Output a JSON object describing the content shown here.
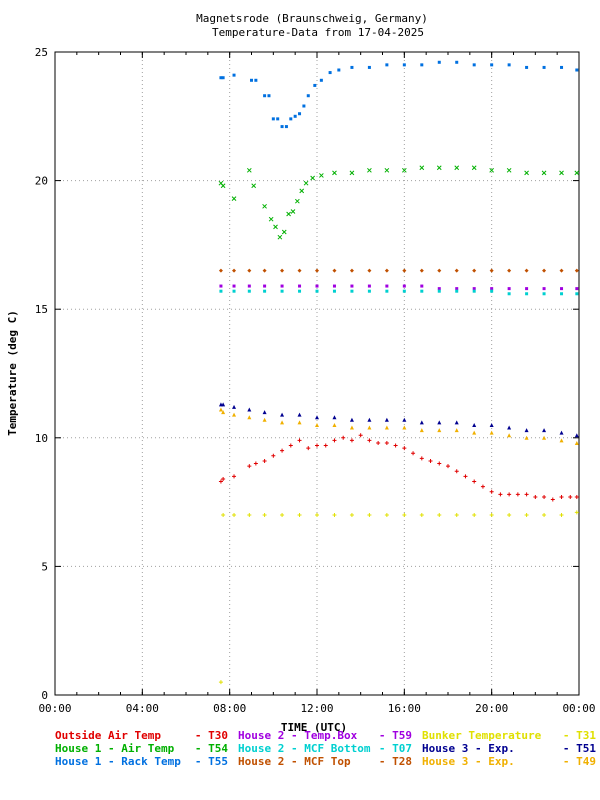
{
  "chart_data": {
    "type": "scatter",
    "title": "Magnetsrode (Braunschweig, Germany)",
    "subtitle": "Temperature-Data from 17-04-2025",
    "xlabel": "TIME (UTC)",
    "ylabel": "Temperature (deg C)",
    "xlim": [
      0,
      24
    ],
    "ylim": [
      0,
      25
    ],
    "x_ticks": [
      "00:00",
      "04:00",
      "08:00",
      "12:00",
      "16:00",
      "20:00",
      "00:00"
    ],
    "y_ticks": [
      "0",
      "5",
      "10",
      "15",
      "20",
      "25"
    ],
    "grid": true,
    "legend_position": "bottom",
    "series": [
      {
        "name": "Outside Air Temp",
        "code": "T30",
        "color": "#e00000",
        "marker": "+",
        "points": [
          [
            7.6,
            8.3
          ],
          [
            7.7,
            8.4
          ],
          [
            8.2,
            8.5
          ],
          [
            8.9,
            8.9
          ],
          [
            9.2,
            9.0
          ],
          [
            9.6,
            9.1
          ],
          [
            10.0,
            9.3
          ],
          [
            10.4,
            9.5
          ],
          [
            10.8,
            9.7
          ],
          [
            11.2,
            9.9
          ],
          [
            11.6,
            9.6
          ],
          [
            12.0,
            9.7
          ],
          [
            12.4,
            9.7
          ],
          [
            12.8,
            9.9
          ],
          [
            13.2,
            10.0
          ],
          [
            13.6,
            9.9
          ],
          [
            14.0,
            10.1
          ],
          [
            14.4,
            9.9
          ],
          [
            14.8,
            9.8
          ],
          [
            15.2,
            9.8
          ],
          [
            15.6,
            9.7
          ],
          [
            16.0,
            9.6
          ],
          [
            16.4,
            9.4
          ],
          [
            16.8,
            9.2
          ],
          [
            17.2,
            9.1
          ],
          [
            17.6,
            9.0
          ],
          [
            18.0,
            8.9
          ],
          [
            18.4,
            8.7
          ],
          [
            18.8,
            8.5
          ],
          [
            19.2,
            8.3
          ],
          [
            19.6,
            8.1
          ],
          [
            20.0,
            7.9
          ],
          [
            20.4,
            7.8
          ],
          [
            20.8,
            7.8
          ],
          [
            21.2,
            7.8
          ],
          [
            21.6,
            7.8
          ],
          [
            22.0,
            7.7
          ],
          [
            22.4,
            7.7
          ],
          [
            22.8,
            7.6
          ],
          [
            23.2,
            7.7
          ],
          [
            23.6,
            7.7
          ],
          [
            23.9,
            7.7
          ]
        ]
      },
      {
        "name": "House 1 - Air  Temp",
        "code": "T54",
        "color": "#00b000",
        "marker": "x",
        "points": [
          [
            7.6,
            19.9
          ],
          [
            7.7,
            19.8
          ],
          [
            8.2,
            19.3
          ],
          [
            8.9,
            20.4
          ],
          [
            9.1,
            19.8
          ],
          [
            9.6,
            19.0
          ],
          [
            9.9,
            18.5
          ],
          [
            10.1,
            18.2
          ],
          [
            10.3,
            17.8
          ],
          [
            10.5,
            18.0
          ],
          [
            10.7,
            18.7
          ],
          [
            10.9,
            18.8
          ],
          [
            11.1,
            19.2
          ],
          [
            11.3,
            19.6
          ],
          [
            11.5,
            19.9
          ],
          [
            11.8,
            20.1
          ],
          [
            12.2,
            20.2
          ],
          [
            12.8,
            20.3
          ],
          [
            13.6,
            20.3
          ],
          [
            14.4,
            20.4
          ],
          [
            15.2,
            20.4
          ],
          [
            16.0,
            20.4
          ],
          [
            16.8,
            20.5
          ],
          [
            17.6,
            20.5
          ],
          [
            18.4,
            20.5
          ],
          [
            19.2,
            20.5
          ],
          [
            20.0,
            20.4
          ],
          [
            20.8,
            20.4
          ],
          [
            21.6,
            20.3
          ],
          [
            22.4,
            20.3
          ],
          [
            23.2,
            20.3
          ],
          [
            23.9,
            20.3
          ]
        ]
      },
      {
        "name": "House 1 - Rack Temp",
        "code": "T55",
        "color": "#0070e0",
        "marker": "square",
        "points": [
          [
            7.6,
            24.0
          ],
          [
            7.7,
            24.0
          ],
          [
            8.2,
            24.1
          ],
          [
            9.0,
            23.9
          ],
          [
            9.2,
            23.9
          ],
          [
            9.6,
            23.3
          ],
          [
            9.8,
            23.3
          ],
          [
            10.0,
            22.4
          ],
          [
            10.2,
            22.4
          ],
          [
            10.4,
            22.1
          ],
          [
            10.6,
            22.1
          ],
          [
            10.8,
            22.4
          ],
          [
            11.0,
            22.5
          ],
          [
            11.2,
            22.6
          ],
          [
            11.4,
            22.9
          ],
          [
            11.6,
            23.3
          ],
          [
            11.9,
            23.7
          ],
          [
            12.2,
            23.9
          ],
          [
            12.6,
            24.2
          ],
          [
            13.0,
            24.3
          ],
          [
            13.6,
            24.4
          ],
          [
            14.4,
            24.4
          ],
          [
            15.2,
            24.5
          ],
          [
            16.0,
            24.5
          ],
          [
            16.8,
            24.5
          ],
          [
            17.6,
            24.6
          ],
          [
            18.4,
            24.6
          ],
          [
            19.2,
            24.5
          ],
          [
            20.0,
            24.5
          ],
          [
            20.8,
            24.5
          ],
          [
            21.6,
            24.4
          ],
          [
            22.4,
            24.4
          ],
          [
            23.2,
            24.4
          ],
          [
            23.9,
            24.3
          ]
        ]
      },
      {
        "name": "House 2 - Temp.Box",
        "code": "T59",
        "color": "#a000e0",
        "marker": "square",
        "points": [
          [
            7.6,
            15.9
          ],
          [
            8.2,
            15.9
          ],
          [
            8.9,
            15.9
          ],
          [
            9.6,
            15.9
          ],
          [
            10.4,
            15.9
          ],
          [
            11.2,
            15.9
          ],
          [
            12.0,
            15.9
          ],
          [
            12.8,
            15.9
          ],
          [
            13.6,
            15.9
          ],
          [
            14.4,
            15.9
          ],
          [
            15.2,
            15.9
          ],
          [
            16.0,
            15.9
          ],
          [
            16.8,
            15.9
          ],
          [
            17.6,
            15.8
          ],
          [
            18.4,
            15.8
          ],
          [
            19.2,
            15.8
          ],
          [
            20.0,
            15.8
          ],
          [
            20.8,
            15.8
          ],
          [
            21.6,
            15.8
          ],
          [
            22.4,
            15.8
          ],
          [
            23.2,
            15.8
          ],
          [
            23.9,
            15.8
          ]
        ]
      },
      {
        "name": "House 2 - MCF Bottom",
        "code": "T07",
        "color": "#00d0d0",
        "marker": "square",
        "points": [
          [
            7.6,
            15.7
          ],
          [
            8.2,
            15.7
          ],
          [
            8.9,
            15.7
          ],
          [
            9.6,
            15.7
          ],
          [
            10.4,
            15.7
          ],
          [
            11.2,
            15.7
          ],
          [
            12.0,
            15.7
          ],
          [
            12.8,
            15.7
          ],
          [
            13.6,
            15.7
          ],
          [
            14.4,
            15.7
          ],
          [
            15.2,
            15.7
          ],
          [
            16.0,
            15.7
          ],
          [
            16.8,
            15.7
          ],
          [
            17.6,
            15.7
          ],
          [
            18.4,
            15.7
          ],
          [
            19.2,
            15.7
          ],
          [
            20.0,
            15.7
          ],
          [
            20.8,
            15.6
          ],
          [
            21.6,
            15.6
          ],
          [
            22.4,
            15.6
          ],
          [
            23.2,
            15.6
          ],
          [
            23.9,
            15.6
          ]
        ]
      },
      {
        "name": "House 2 - MCF Top",
        "code": "T28",
        "color": "#c05000",
        "marker": "diamond",
        "points": [
          [
            7.6,
            16.5
          ],
          [
            8.2,
            16.5
          ],
          [
            8.9,
            16.5
          ],
          [
            9.6,
            16.5
          ],
          [
            10.4,
            16.5
          ],
          [
            11.2,
            16.5
          ],
          [
            12.0,
            16.5
          ],
          [
            12.8,
            16.5
          ],
          [
            13.6,
            16.5
          ],
          [
            14.4,
            16.5
          ],
          [
            15.2,
            16.5
          ],
          [
            16.0,
            16.5
          ],
          [
            16.8,
            16.5
          ],
          [
            17.6,
            16.5
          ],
          [
            18.4,
            16.5
          ],
          [
            19.2,
            16.5
          ],
          [
            20.0,
            16.5
          ],
          [
            20.8,
            16.5
          ],
          [
            21.6,
            16.5
          ],
          [
            22.4,
            16.5
          ],
          [
            23.2,
            16.5
          ],
          [
            23.9,
            16.5
          ]
        ]
      },
      {
        "name": "Bunker Temperature",
        "code": "T31",
        "color": "#e0e000",
        "marker": "+",
        "points": [
          [
            7.6,
            0.5
          ],
          [
            7.7,
            7.0
          ],
          [
            8.2,
            7.0
          ],
          [
            8.9,
            7.0
          ],
          [
            9.6,
            7.0
          ],
          [
            10.4,
            7.0
          ],
          [
            11.2,
            7.0
          ],
          [
            12.0,
            7.0
          ],
          [
            12.8,
            7.0
          ],
          [
            13.6,
            7.0
          ],
          [
            14.4,
            7.0
          ],
          [
            15.2,
            7.0
          ],
          [
            16.0,
            7.0
          ],
          [
            16.8,
            7.0
          ],
          [
            17.6,
            7.0
          ],
          [
            18.4,
            7.0
          ],
          [
            19.2,
            7.0
          ],
          [
            20.0,
            7.0
          ],
          [
            20.8,
            7.0
          ],
          [
            21.6,
            7.0
          ],
          [
            22.4,
            7.0
          ],
          [
            23.2,
            7.0
          ],
          [
            23.9,
            7.1
          ]
        ]
      },
      {
        "name": "House 3 - Exp.",
        "code": "T51",
        "color": "#000090",
        "marker": "triangle",
        "points": [
          [
            7.6,
            11.3
          ],
          [
            7.7,
            11.3
          ],
          [
            8.2,
            11.2
          ],
          [
            8.9,
            11.1
          ],
          [
            9.6,
            11.0
          ],
          [
            10.4,
            10.9
          ],
          [
            11.2,
            10.9
          ],
          [
            12.0,
            10.8
          ],
          [
            12.8,
            10.8
          ],
          [
            13.6,
            10.7
          ],
          [
            14.4,
            10.7
          ],
          [
            15.2,
            10.7
          ],
          [
            16.0,
            10.7
          ],
          [
            16.8,
            10.6
          ],
          [
            17.6,
            10.6
          ],
          [
            18.4,
            10.6
          ],
          [
            19.2,
            10.5
          ],
          [
            20.0,
            10.5
          ],
          [
            20.8,
            10.4
          ],
          [
            21.6,
            10.3
          ],
          [
            22.4,
            10.3
          ],
          [
            23.2,
            10.2
          ],
          [
            23.9,
            10.1
          ]
        ]
      },
      {
        "name": "House 3 - Exp.",
        "code": "T49",
        "color": "#f0b000",
        "marker": "triangle",
        "points": [
          [
            7.6,
            11.1
          ],
          [
            7.7,
            11.0
          ],
          [
            8.2,
            10.9
          ],
          [
            8.9,
            10.8
          ],
          [
            9.6,
            10.7
          ],
          [
            10.4,
            10.6
          ],
          [
            11.2,
            10.6
          ],
          [
            12.0,
            10.5
          ],
          [
            12.8,
            10.5
          ],
          [
            13.6,
            10.4
          ],
          [
            14.4,
            10.4
          ],
          [
            15.2,
            10.4
          ],
          [
            16.0,
            10.4
          ],
          [
            16.8,
            10.3
          ],
          [
            17.6,
            10.3
          ],
          [
            18.4,
            10.3
          ],
          [
            19.2,
            10.2
          ],
          [
            20.0,
            10.2
          ],
          [
            20.8,
            10.1
          ],
          [
            21.6,
            10.0
          ],
          [
            22.4,
            10.0
          ],
          [
            23.2,
            9.9
          ],
          [
            23.9,
            9.8
          ]
        ]
      }
    ],
    "legend": [
      {
        "label": "Outside Air Temp",
        "code": "- T30",
        "color": "#e00000"
      },
      {
        "label": "House 2 - Temp.Box",
        "code": "- T59",
        "color": "#a000e0"
      },
      {
        "label": "Bunker Temperature",
        "code": "- T31",
        "color": "#e0e000"
      },
      {
        "label": "House 1 - Air  Temp",
        "code": "- T54",
        "color": "#00b000"
      },
      {
        "label": "House 2 - MCF Bottom",
        "code": "- T07",
        "color": "#00d0d0"
      },
      {
        "label": "House 3 - Exp.",
        "code": "- T51",
        "color": "#000090"
      },
      {
        "label": "House 1 - Rack Temp",
        "code": "- T55",
        "color": "#0070e0"
      },
      {
        "label": "House 2 - MCF Top",
        "code": "- T28",
        "color": "#c05000"
      },
      {
        "label": "House 3 - Exp.",
        "code": "- T49",
        "color": "#f0b000"
      }
    ]
  }
}
